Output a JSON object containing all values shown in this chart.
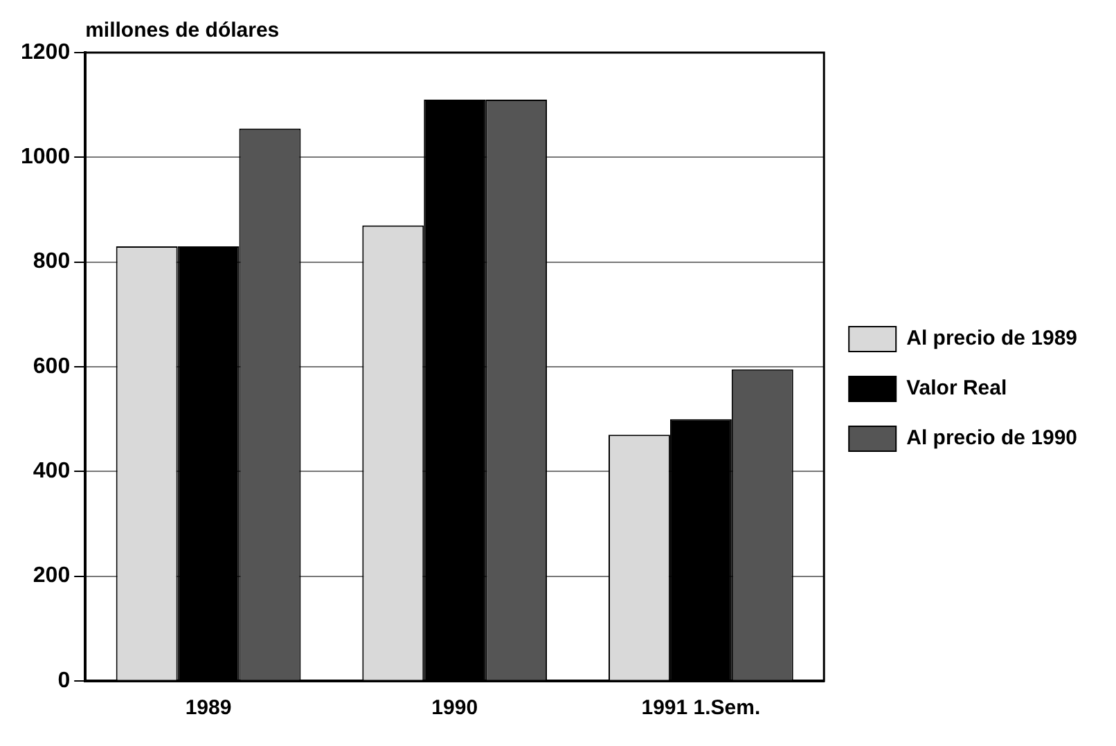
{
  "chart_data": {
    "type": "bar",
    "ylabel": "millones de dólares",
    "categories": [
      "1989",
      "1990",
      "1991 1.Sem."
    ],
    "series": [
      {
        "name": "Al precio de 1989",
        "color": "#d9d9d9",
        "values": [
          830,
          870,
          470
        ]
      },
      {
        "name": "Valor Real",
        "color": "#000000",
        "values": [
          830,
          1110,
          500
        ]
      },
      {
        "name": "Al precio de 1990",
        "color": "#555555",
        "values": [
          1055,
          1110,
          595
        ]
      }
    ],
    "ylim": [
      0,
      1200
    ],
    "yticks": [
      0,
      200,
      400,
      600,
      800,
      1000,
      1200
    ],
    "grid": "y",
    "legend": "right"
  }
}
